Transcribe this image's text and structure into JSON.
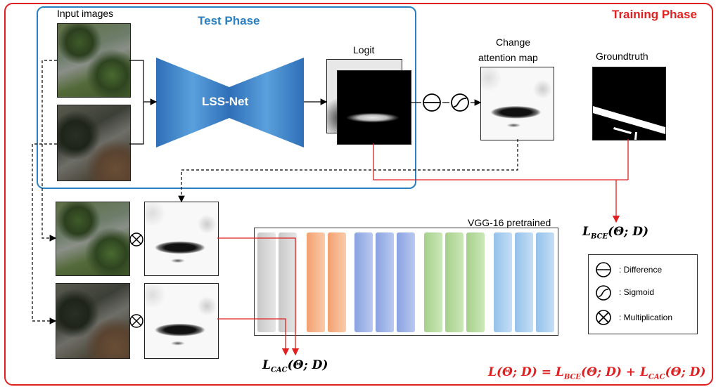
{
  "training_phase_label": "Training Phase",
  "test_phase_label": "Test Phase",
  "input_images_label": "Input images",
  "network_label": "LSS-Net",
  "logit_label": "Logit",
  "change_attention_label_line1": "Change",
  "change_attention_label_line2": "attention map",
  "groundtruth_label": "Groundtruth",
  "vgg_label": "VGG-16 pretrained",
  "loss_bce": {
    "main": "L",
    "sub": "BCE",
    "args": "(Θ; D)"
  },
  "loss_cac": {
    "main": "L",
    "sub": "CAC",
    "args": "(Θ; D)"
  },
  "total_loss": {
    "lhs": "L(Θ; D) = ",
    "bce_main": "L",
    "bce_sub": "BCE",
    "bce_args": "(Θ; D) + ",
    "cac_main": "L",
    "cac_sub": "CAC",
    "cac_args": "(Θ; D)"
  },
  "legend": [
    {
      "icon": "difference-icon",
      "label": ": Difference"
    },
    {
      "icon": "sigmoid-icon",
      "label": ": Sigmoid"
    },
    {
      "icon": "multiplication-icon",
      "label": ": Multiplication"
    }
  ],
  "colors": {
    "training_frame": "#e02020",
    "test_frame": "#2a7fc0",
    "network_fill": "#3f8fd0",
    "layer_gray": "#d4d4d4",
    "layer_orange": "#f6b48a",
    "layer_blue": "#9fb4e6",
    "layer_green": "#b8dba0",
    "layer_lightblue": "#a9cdef"
  }
}
